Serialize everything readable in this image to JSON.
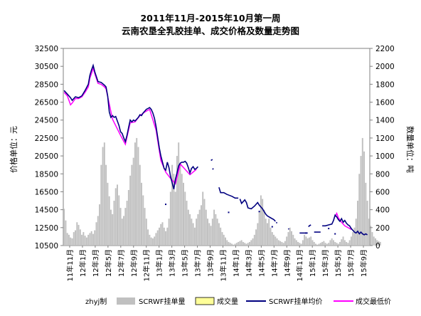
{
  "chart_data": {
    "type": "bar+line",
    "title": "2011年11月-2015年10月第一周",
    "subtitle": "云南农垦全乳胶挂单、成交价格及数量走势图",
    "ylabel": "价格单位：元",
    "y2label": "数量单位：吨",
    "ylim": [
      10500,
      32500
    ],
    "y2lim": [
      0,
      2200
    ],
    "yticks": [
      "32500",
      "30500",
      "28500",
      "26500",
      "24500",
      "22500",
      "20500",
      "18500",
      "16500",
      "14500",
      "12500",
      "10500"
    ],
    "y2ticks": [
      "2200",
      "2000",
      "1800",
      "1600",
      "1400",
      "1200",
      "1000",
      "800",
      "600",
      "400",
      "200",
      "0"
    ],
    "x_ticks": [
      "11年11月",
      "12年1月",
      "12年3月",
      "12年5月",
      "12年7月",
      "12年9月",
      "12年11月",
      "13年1月",
      "13年3月",
      "13年5月",
      "13年7月",
      "13年9月",
      "13年11月",
      "14年1月",
      "14年3月",
      "14年5月",
      "14年7月",
      "14年9月",
      "14年11月",
      "15年1月",
      "15年3月",
      "15年5月",
      "15年7月",
      "15年9月"
    ],
    "grid": false,
    "legend_position": "bottom",
    "credit": "zhyj制",
    "series": [
      {
        "name": "SCRWF挂单量",
        "type": "bar",
        "axis": "right",
        "color": "#c0c0c0",
        "values": [
          410,
          280,
          140,
          120,
          90,
          80,
          150,
          170,
          260,
          230,
          180,
          120,
          150,
          110,
          90,
          120,
          140,
          160,
          130,
          170,
          260,
          330,
          460,
          900,
          1100,
          1150,
          900,
          700,
          550,
          400,
          350,
          500,
          640,
          680,
          560,
          420,
          300,
          330,
          420,
          500,
          620,
          780,
          900,
          980,
          1150,
          1200,
          1100,
          900,
          700,
          560,
          420,
          300,
          180,
          120,
          90,
          80,
          100,
          140,
          170,
          200,
          240,
          260,
          200,
          160,
          200,
          300,
          600,
          900,
          800,
          600,
          1000,
          1150,
          900,
          800,
          700,
          600,
          500,
          400,
          350,
          300,
          250,
          200,
          300,
          350,
          400,
          450,
          600,
          520,
          400,
          300,
          250,
          220,
          300,
          400,
          350,
          300,
          250,
          200,
          150,
          120,
          90,
          60,
          40,
          30,
          20,
          10,
          20,
          30,
          40,
          50,
          60,
          40,
          30,
          20,
          30,
          40,
          60,
          80,
          120,
          180,
          250,
          380,
          560,
          520,
          400,
          300,
          250,
          300,
          200,
          150,
          120,
          100,
          80,
          60,
          50,
          40,
          30,
          50,
          100,
          150,
          200,
          160,
          120,
          80,
          60,
          40,
          30,
          20,
          60,
          120,
          100,
          80,
          90,
          100,
          60,
          40,
          20,
          10,
          20,
          30,
          40,
          50,
          30,
          20,
          30,
          60,
          80,
          60,
          40,
          30,
          20,
          40,
          70,
          100,
          60,
          40,
          30,
          60,
          100,
          150,
          200,
          300,
          500,
          800,
          1000,
          1200,
          1050,
          700,
          500,
          300,
          220,
          150,
          100,
          80,
          60,
          50,
          40
        ]
      },
      {
        "name": "成交量",
        "type": "bar",
        "axis": "right",
        "color": "#ffff99",
        "values": []
      },
      {
        "name": "SCRWF挂单均价",
        "type": "line",
        "axis": "left",
        "color": "#000080",
        "points": [
          [
            0,
            27800
          ],
          [
            2,
            27400
          ],
          [
            4,
            27000
          ],
          [
            5,
            26700
          ],
          [
            7,
            27100
          ],
          [
            9,
            27000
          ],
          [
            11,
            27200
          ],
          [
            13,
            27800
          ],
          [
            15,
            28500
          ],
          [
            16,
            29500
          ],
          [
            17,
            30100
          ],
          [
            18,
            30600
          ],
          [
            19,
            29900
          ],
          [
            21,
            28800
          ],
          [
            23,
            28700
          ],
          [
            25,
            28400
          ],
          [
            26,
            28200
          ],
          [
            27,
            27200
          ],
          [
            28,
            25400
          ],
          [
            29,
            24800
          ],
          [
            30,
            25000
          ],
          [
            31,
            24800
          ],
          [
            32,
            24900
          ],
          [
            33,
            24400
          ],
          [
            34,
            23900
          ],
          [
            35,
            23200
          ],
          [
            36,
            23000
          ],
          [
            37,
            22500
          ],
          [
            38,
            22100
          ],
          [
            39,
            22800
          ],
          [
            40,
            23700
          ],
          [
            41,
            24500
          ],
          [
            42,
            24300
          ],
          [
            43,
            24500
          ],
          [
            44,
            24400
          ],
          [
            45,
            24600
          ],
          [
            46,
            24800
          ],
          [
            47,
            25100
          ],
          [
            48,
            25000
          ],
          [
            49,
            25300
          ],
          [
            50,
            25500
          ],
          [
            51,
            25700
          ],
          [
            52,
            25800
          ],
          [
            53,
            25900
          ],
          [
            54,
            25700
          ],
          [
            55,
            25300
          ],
          [
            56,
            24700
          ],
          [
            57,
            23800
          ],
          [
            58,
            22600
          ],
          [
            59,
            21400
          ],
          [
            60,
            20500
          ],
          [
            61,
            19800
          ],
          [
            62,
            19100
          ],
          [
            63,
            18900
          ],
          [
            64,
            19800
          ],
          [
            65,
            19200
          ],
          [
            66,
            18200
          ],
          [
            67,
            17500
          ],
          [
            68,
            16800
          ],
          [
            69,
            17900
          ],
          [
            70,
            18600
          ],
          [
            71,
            19400
          ],
          [
            72,
            19700
          ],
          [
            73,
            19800
          ],
          [
            74,
            19800
          ],
          [
            75,
            19900
          ],
          [
            76,
            19700
          ],
          [
            77,
            19200
          ],
          [
            78,
            18600
          ],
          [
            79,
            19100
          ],
          [
            80,
            19300
          ],
          [
            81,
            19000
          ],
          [
            82,
            19100
          ],
          [
            83,
            19300
          ]
        ]
      },
      {
        "name": "成交最低价",
        "type": "line",
        "axis": "left",
        "color": "#ff00ff",
        "points": [
          [
            0,
            27600
          ],
          [
            2,
            27200
          ],
          [
            4,
            26200
          ],
          [
            5,
            26400
          ],
          [
            7,
            26900
          ],
          [
            9,
            26900
          ],
          [
            11,
            27100
          ],
          [
            13,
            27600
          ],
          [
            15,
            28200
          ],
          [
            16,
            29200
          ],
          [
            17,
            29700
          ],
          [
            18,
            30300
          ],
          [
            19,
            29700
          ],
          [
            21,
            28600
          ],
          [
            23,
            28500
          ],
          [
            25,
            28200
          ],
          [
            26,
            28000
          ],
          [
            30,
            24600
          ],
          [
            35,
            22800
          ],
          [
            38,
            21800
          ],
          [
            41,
            24200
          ],
          [
            44,
            24300
          ],
          [
            47,
            25000
          ],
          [
            50,
            25400
          ],
          [
            53,
            25700
          ],
          [
            57,
            23400
          ],
          [
            60,
            20000
          ],
          [
            63,
            18700
          ],
          [
            66,
            18000
          ],
          [
            69,
            17400
          ],
          [
            72,
            19600
          ],
          [
            78,
            18400
          ],
          [
            82,
            19000
          ]
        ]
      }
    ],
    "late_segments": [
      [
        [
          91,
          20000
        ],
        [
          92,
          20100
        ]
      ],
      [
        [
          92,
          19000
        ],
        [
          92.6,
          19100
        ]
      ],
      [
        [
          96,
          17000
        ],
        [
          97,
          16400
        ],
        [
          99,
          16400
        ],
        [
          101,
          16200
        ],
        [
          104,
          16000
        ],
        [
          106,
          15800
        ],
        [
          108,
          15800
        ]
      ],
      [
        [
          109,
          15700
        ],
        [
          110,
          15200
        ],
        [
          111,
          15400
        ],
        [
          112,
          15600
        ],
        [
          113,
          15300
        ],
        [
          114,
          14700
        ],
        [
          116,
          14600
        ],
        [
          118,
          14900
        ],
        [
          120,
          15300
        ],
        [
          121,
          15000
        ],
        [
          123,
          14600
        ],
        [
          125,
          14000
        ],
        [
          126,
          13800
        ],
        [
          128,
          13600
        ],
        [
          130,
          13400
        ],
        [
          131,
          13200
        ]
      ],
      [
        [
          131.5,
          13100
        ],
        [
          132,
          13000
        ]
      ],
      [
        [
          139,
          12400
        ],
        [
          139.4,
          12300
        ]
      ],
      [
        [
          146,
          11900
        ],
        [
          147,
          11900
        ],
        [
          149,
          11900
        ],
        [
          151,
          11900
        ]
      ],
      [
        [
          151.5,
          12600
        ],
        [
          152,
          12700
        ],
        [
          153,
          12800
        ]
      ],
      [
        [
          155,
          12000
        ],
        [
          157,
          12000
        ],
        [
          159,
          12000
        ]
      ],
      [
        [
          160,
          12700
        ],
        [
          162,
          12700
        ],
        [
          164,
          12800
        ],
        [
          166,
          12900
        ],
        [
          167,
          13300
        ],
        [
          168,
          13900
        ],
        [
          169,
          13700
        ],
        [
          170,
          13400
        ],
        [
          171,
          13200
        ],
        [
          172,
          13500
        ],
        [
          173,
          13100
        ],
        [
          174,
          13300
        ],
        [
          175,
          13000
        ],
        [
          176,
          12800
        ],
        [
          177,
          12700
        ],
        [
          178,
          12400
        ],
        [
          179,
          12200
        ],
        [
          180,
          12000
        ],
        [
          181,
          11900
        ],
        [
          182,
          12100
        ],
        [
          183,
          11800
        ],
        [
          184,
          12000
        ],
        [
          185,
          11800
        ],
        [
          186,
          11700
        ],
        [
          187,
          11800
        ],
        [
          188,
          11700
        ]
      ]
    ],
    "late_magenta": [
      [
        [
          168,
          13700
        ],
        [
          169,
          14100
        ],
        [
          170,
          13600
        ],
        [
          172,
          13100
        ],
        [
          174,
          12700
        ],
        [
          176,
          12500
        ],
        [
          178,
          12300
        ]
      ]
    ],
    "dots": [
      [
        63,
        15100
      ],
      [
        102,
        14200
      ],
      [
        121,
        14300
      ],
      [
        129,
        12600
      ],
      [
        150,
        11900
      ],
      [
        164,
        12400
      ],
      [
        168,
        11800
      ]
    ]
  }
}
